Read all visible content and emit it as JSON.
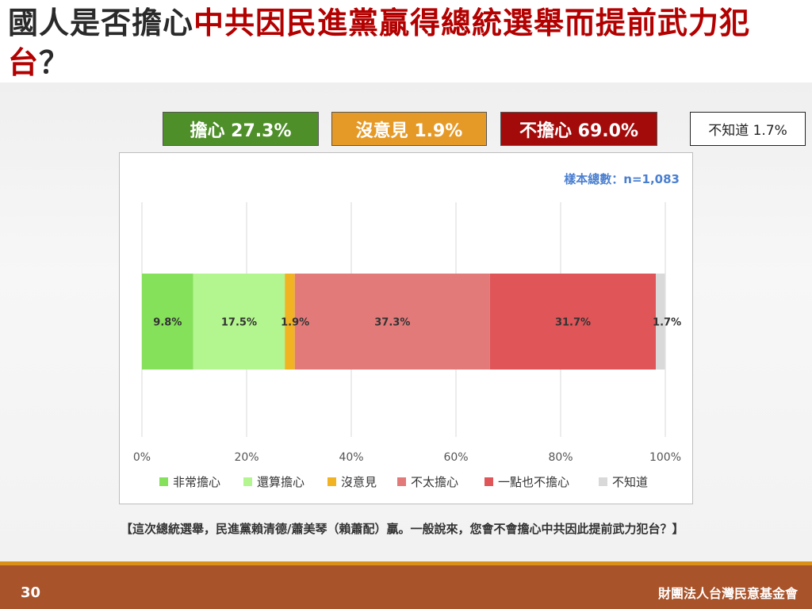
{
  "title": {
    "part1": "國人是否擔心",
    "part2": "中共因民進黨贏得總統選舉而提前武力犯台",
    "part3": "？"
  },
  "summary": {
    "worry": "擔心 27.3%",
    "no_opinion": "沒意見 1.9%",
    "not_worry": "不擔心 69.0%",
    "dont_know": "不知道 1.7%"
  },
  "sample_size": "樣本總數：n=1,083",
  "chart_data": {
    "type": "bar",
    "orientation": "horizontal",
    "stacked": true,
    "categories": [
      ""
    ],
    "series": [
      {
        "name": "非常擔心",
        "values": [
          9.8
        ],
        "label": "9.8%",
        "color": "#85e05a"
      },
      {
        "name": "還算擔心",
        "values": [
          17.5
        ],
        "label": "17.5%",
        "color": "#b3f58e"
      },
      {
        "name": "沒意見",
        "values": [
          1.9
        ],
        "label": "1.9%",
        "color": "#f2b322"
      },
      {
        "name": "不太擔心",
        "values": [
          37.3
        ],
        "label": "37.3%",
        "color": "#e27a79"
      },
      {
        "name": "一點也不擔心",
        "values": [
          31.7
        ],
        "label": "31.7%",
        "color": "#df5558"
      },
      {
        "name": "不知道",
        "values": [
          1.7
        ],
        "label": "1.7%",
        "color": "#d9d9d9"
      }
    ],
    "xlim": [
      0,
      100
    ],
    "xticks": [
      "0%",
      "20%",
      "40%",
      "60%",
      "80%",
      "100%"
    ],
    "grid": true,
    "legend": "bottom"
  },
  "question": "【這次總統選舉，民進黨賴清德/蕭美琴（賴蕭配）贏。一般說來，您會不會擔心中共因此提前武力犯台？】",
  "footer": {
    "page": "30",
    "org": "財團法人台灣民意基金會"
  }
}
